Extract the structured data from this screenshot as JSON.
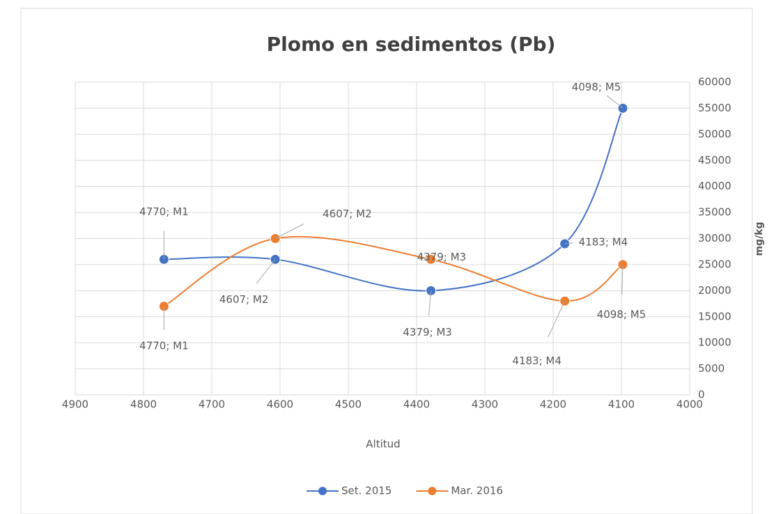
{
  "chart_data": {
    "type": "line",
    "title": "Plomo en sedimentos (Pb)",
    "x_label": "Altitud",
    "y_label": "mg/kg",
    "x": [
      4770,
      4607,
      4379,
      4183,
      4098
    ],
    "series": [
      {
        "name": "Set. 2015",
        "color": "#4472c4",
        "values": [
          26000,
          26000,
          20000,
          29000,
          55000
        ],
        "value_labels": [
          "4770; M1",
          "4607; M2",
          "4379; M3",
          "4183; M4",
          "4098; M5"
        ]
      },
      {
        "name": "Mar. 2016",
        "color": "#ed7d31",
        "values": [
          17000,
          30000,
          26000,
          18000,
          25000
        ],
        "value_labels": [
          "4770; M1",
          "4607; M2",
          "4379; M3",
          "4183; M4",
          "4098; M5"
        ]
      }
    ],
    "xlim": [
      4900,
      4000
    ],
    "xticks": [
      4900,
      4800,
      4700,
      4600,
      4500,
      4400,
      4300,
      4200,
      4100,
      4000
    ],
    "ylim": [
      0,
      60000
    ],
    "yticks": [
      0,
      5000,
      10000,
      15000,
      20000,
      25000,
      30000,
      35000,
      40000,
      45000,
      50000,
      55000,
      60000
    ],
    "grid": true,
    "legend": "bottom",
    "smooth": true
  }
}
